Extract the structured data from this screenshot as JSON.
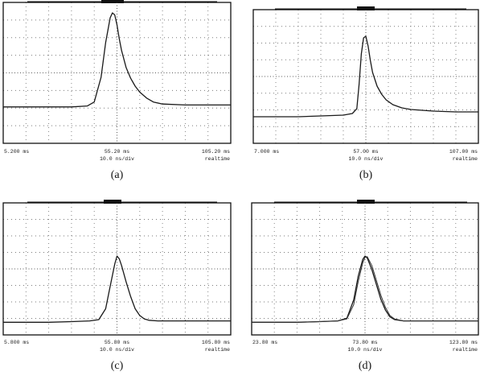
{
  "chart_data": [
    {
      "type": "line",
      "panel": "(a)",
      "x_unit": "ms",
      "xlim": [
        5.2,
        105.2
      ],
      "x_tick_labels": [
        "5.200 ms",
        "55.20 ms",
        "105.20 ms"
      ],
      "scale_label": "10.0 ns/div",
      "mode_label": "realtime",
      "series": [
        {
          "x": [
            5.2,
            15.2,
            25.2,
            35.2,
            42.2,
            45.2,
            48.2,
            50.2,
            52.2,
            53.2,
            54.2,
            55.2,
            56.2,
            57.2,
            59.2,
            61.2,
            63.2,
            65.2,
            68.2,
            71.2,
            75.2,
            85.2,
            95.2,
            105.2
          ],
          "y": [
            0.05,
            0.05,
            0.05,
            0.05,
            0.06,
            0.1,
            0.35,
            0.7,
            0.95,
            1.0,
            0.98,
            0.88,
            0.74,
            0.62,
            0.45,
            0.34,
            0.26,
            0.2,
            0.14,
            0.1,
            0.08,
            0.07,
            0.07,
            0.07
          ]
        }
      ]
    },
    {
      "type": "line",
      "panel": "(b)",
      "x_unit": "ms",
      "xlim": [
        7.0,
        107.0
      ],
      "x_tick_labels": [
        "7.000 ms",
        "57.00 ms",
        "107.00 ms"
      ],
      "scale_label": "10.0 ns/div",
      "mode_label": "realtime",
      "series": [
        {
          "x": [
            7.0,
            17.0,
            27.0,
            37.0,
            47.0,
            51.0,
            53.0,
            54.0,
            55.0,
            56.0,
            57.0,
            58.0,
            59.0,
            60.0,
            62.0,
            64.0,
            66.0,
            69.0,
            73.0,
            77.0,
            87.0,
            97.0,
            107.0
          ],
          "y": [
            0.0,
            0.0,
            0.0,
            0.01,
            0.02,
            0.04,
            0.1,
            0.4,
            0.78,
            0.98,
            1.0,
            0.88,
            0.7,
            0.55,
            0.38,
            0.28,
            0.21,
            0.15,
            0.11,
            0.09,
            0.07,
            0.06,
            0.06
          ]
        }
      ]
    },
    {
      "type": "line",
      "panel": "(c)",
      "x_unit": "ms",
      "xlim": [
        5.8,
        105.8
      ],
      "x_tick_labels": [
        "5.800 ms",
        "55.80 ms",
        "105.80 ms"
      ],
      "scale_label": "10.0 ns/div",
      "mode_label": "realtime",
      "series": [
        {
          "x": [
            5.8,
            15.8,
            25.8,
            35.8,
            43.8,
            47.8,
            50.8,
            52.8,
            54.8,
            55.8,
            56.8,
            57.8,
            59.8,
            61.8,
            63.8,
            65.8,
            67.8,
            69.8,
            73.8,
            79.8,
            89.8,
            105.8
          ],
          "y": [
            0.02,
            0.02,
            0.02,
            0.03,
            0.04,
            0.06,
            0.22,
            0.55,
            0.88,
            1.0,
            0.96,
            0.86,
            0.62,
            0.4,
            0.22,
            0.12,
            0.07,
            0.05,
            0.04,
            0.04,
            0.04,
            0.04
          ]
        }
      ]
    },
    {
      "type": "line",
      "panel": "(d)",
      "x_unit": "ms",
      "xlim": [
        23.8,
        123.8
      ],
      "x_tick_labels": [
        "23.80 ms",
        "73.80 ms",
        "123.80 ms"
      ],
      "scale_label": "10.0 ns/div",
      "mode_label": "realtime",
      "series": [
        {
          "x": [
            23.8,
            33.8,
            43.8,
            53.8,
            61.8,
            65.8,
            68.8,
            70.8,
            72.8,
            73.8,
            74.8,
            76.8,
            78.8,
            80.8,
            82.8,
            84.8,
            86.8,
            90.8,
            97.8,
            107.8,
            123.8
          ],
          "y": [
            0.02,
            0.02,
            0.02,
            0.03,
            0.04,
            0.08,
            0.35,
            0.7,
            0.95,
            1.0,
            0.97,
            0.8,
            0.58,
            0.36,
            0.2,
            0.1,
            0.06,
            0.04,
            0.04,
            0.04,
            0.04
          ]
        },
        {
          "x": [
            23.8,
            33.8,
            43.8,
            53.8,
            61.8,
            65.8,
            68.8,
            70.8,
            72.8,
            73.8,
            74.8,
            76.8,
            78.8,
            80.8,
            82.8,
            84.8,
            86.8,
            90.8,
            97.8,
            107.8,
            123.8
          ],
          "y": [
            0.02,
            0.02,
            0.02,
            0.03,
            0.04,
            0.07,
            0.28,
            0.62,
            0.9,
            0.98,
            0.99,
            0.86,
            0.64,
            0.42,
            0.24,
            0.12,
            0.07,
            0.04,
            0.04,
            0.04,
            0.04
          ]
        }
      ]
    }
  ],
  "captions": [
    "(a)",
    "(b)",
    "(c)",
    "(d)"
  ]
}
